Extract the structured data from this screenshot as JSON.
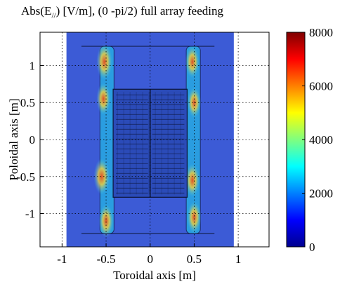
{
  "chart_data": {
    "type": "heatmap",
    "title_prefix": "Abs(E",
    "title_subscript": "//",
    "title_suffix": ") [V/m], (0 -pi/2) full array feeding",
    "xlabel": "Toroidal axis [m]",
    "ylabel": "Poloidal axis [m]",
    "xlim": [
      -1.25,
      1.35
    ],
    "ylim": [
      -1.45,
      1.45
    ],
    "x_ticks": [
      -1,
      -0.5,
      0,
      0.5,
      1
    ],
    "x_tick_labels": [
      "-1",
      "-0.5",
      "0",
      "0.5",
      "1"
    ],
    "y_ticks": [
      1,
      0.5,
      0,
      -0.5,
      -1
    ],
    "y_tick_labels": [
      "1",
      "0.5",
      "0",
      "-0.5",
      "-1"
    ],
    "grid": true,
    "colorbar": {
      "min": 0,
      "max": 8000,
      "ticks": [
        8000,
        6000,
        4000,
        2000,
        0
      ],
      "tick_labels": [
        "8000",
        "6000",
        "4000",
        "2000",
        "0"
      ],
      "colormap": "jet"
    },
    "field_region": {
      "x": [
        -0.95,
        0.95
      ],
      "y": [
        -1.45,
        1.45
      ]
    },
    "antenna_box": {
      "x": [
        -0.42,
        0.42
      ],
      "y": [
        -0.78,
        0.68
      ]
    },
    "conductors": [
      {
        "side": "left",
        "x": [
          -0.57,
          -0.41
        ],
        "y": [
          -1.27,
          1.26
        ]
      },
      {
        "side": "right",
        "x": [
          0.41,
          0.57
        ],
        "y": [
          -1.27,
          1.26
        ]
      }
    ],
    "hotspots": [
      {
        "x": -0.52,
        "y": 1.05,
        "value": 6500
      },
      {
        "x": -0.53,
        "y": 0.55,
        "value": 5000
      },
      {
        "x": -0.55,
        "y": -0.5,
        "value": 6500
      },
      {
        "x": -0.5,
        "y": -1.1,
        "value": 5500
      },
      {
        "x": 0.48,
        "y": 1.05,
        "value": 5000
      },
      {
        "x": 0.5,
        "y": 0.5,
        "value": 4500
      },
      {
        "x": 0.48,
        "y": -0.55,
        "value": 5500
      },
      {
        "x": 0.5,
        "y": -1.05,
        "value": 5000
      }
    ],
    "colors": {
      "background_field": "#3c5bd6",
      "conductor_field": "#2a9de0",
      "hot": "#e84a1c",
      "grid": "#000000"
    }
  }
}
